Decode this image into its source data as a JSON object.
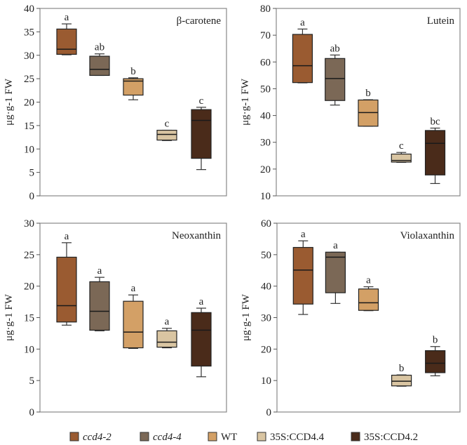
{
  "chart_data": [
    {
      "type": "box",
      "title": "β-carotene",
      "ylabel": "μg·g-1 FW",
      "ylim": [
        0,
        40
      ],
      "yticks": [
        0,
        5,
        10,
        15,
        20,
        25,
        30,
        35,
        40
      ],
      "categories": [
        "ccd4-2",
        "ccd4-4",
        "WT",
        "35S:CCD4.4",
        "35S:CCD4.2"
      ],
      "boxes": [
        {
          "min": 30.1,
          "q1": 30.2,
          "median": 31.3,
          "q3": 35.6,
          "max": 36.7,
          "label": "a"
        },
        {
          "min": 25.7,
          "q1": 25.7,
          "median": 27.0,
          "q3": 29.8,
          "max": 30.3,
          "label": "ab"
        },
        {
          "min": 20.5,
          "q1": 21.5,
          "median": 24.5,
          "q3": 25.0,
          "max": 25.2,
          "label": "b"
        },
        {
          "min": 11.8,
          "q1": 11.9,
          "median": 13.1,
          "q3": 14.0,
          "max": 14.0,
          "label": "c"
        },
        {
          "min": 5.6,
          "q1": 8.0,
          "median": 16.1,
          "q3": 18.4,
          "max": 18.9,
          "label": "c"
        }
      ]
    },
    {
      "type": "box",
      "title": "Lutein",
      "ylabel": "μg·g-1 FW",
      "ylim": [
        10,
        80
      ],
      "yticks": [
        10,
        20,
        30,
        40,
        50,
        60,
        70,
        80
      ],
      "categories": [
        "ccd4-2",
        "ccd4-4",
        "WT",
        "35S:CCD4.4",
        "35S:CCD4.2"
      ],
      "boxes": [
        {
          "min": 52.2,
          "q1": 52.3,
          "median": 58.6,
          "q3": 70.3,
          "max": 72.3,
          "label": "a"
        },
        {
          "min": 43.9,
          "q1": 45.6,
          "median": 53.8,
          "q3": 61.3,
          "max": 62.6,
          "label": "ab"
        },
        {
          "min": 36.0,
          "q1": 36.0,
          "median": 41.1,
          "q3": 45.8,
          "max": 45.9,
          "label": "b"
        },
        {
          "min": 22.5,
          "q1": 22.6,
          "median": 23.2,
          "q3": 25.6,
          "max": 26.2,
          "label": "c"
        },
        {
          "min": 14.6,
          "q1": 17.8,
          "median": 29.6,
          "q3": 34.4,
          "max": 35.3,
          "label": "bc"
        }
      ]
    },
    {
      "type": "box",
      "title": "Neoxanthin",
      "ylabel": "μg·g-1 FW",
      "ylim": [
        0,
        30
      ],
      "yticks": [
        0,
        5,
        10,
        15,
        20,
        25,
        30
      ],
      "categories": [
        "ccd4-2",
        "ccd4-4",
        "WT",
        "35S:CCD4.4",
        "35S:CCD4.2"
      ],
      "boxes": [
        {
          "min": 13.8,
          "q1": 14.3,
          "median": 16.9,
          "q3": 24.6,
          "max": 26.9,
          "label": "a"
        },
        {
          "min": 12.9,
          "q1": 13.0,
          "median": 16.0,
          "q3": 20.7,
          "max": 21.4,
          "label": "a"
        },
        {
          "min": 10.1,
          "q1": 10.2,
          "median": 12.7,
          "q3": 17.6,
          "max": 18.6,
          "label": "a"
        },
        {
          "min": 10.2,
          "q1": 10.3,
          "median": 11.1,
          "q3": 12.9,
          "max": 13.3,
          "label": "a"
        },
        {
          "min": 5.6,
          "q1": 7.3,
          "median": 13.0,
          "q3": 15.8,
          "max": 16.5,
          "label": "a"
        }
      ]
    },
    {
      "type": "box",
      "title": "Violaxanthin",
      "ylabel": "μg·g-1 FW",
      "ylim": [
        0,
        60
      ],
      "yticks": [
        0,
        10,
        20,
        30,
        40,
        50,
        60
      ],
      "categories": [
        "ccd4-2",
        "ccd4-4",
        "WT",
        "35S:CCD4.4",
        "35S:CCD4.2"
      ],
      "boxes": [
        {
          "min": 31.0,
          "q1": 34.3,
          "median": 45.1,
          "q3": 52.3,
          "max": 54.4,
          "label": "a"
        },
        {
          "min": 34.5,
          "q1": 37.9,
          "median": 49.2,
          "q3": 50.8,
          "max": 50.8,
          "label": "a"
        },
        {
          "min": 32.2,
          "q1": 32.3,
          "median": 34.7,
          "q3": 39.1,
          "max": 39.8,
          "label": "a"
        },
        {
          "min": 8.2,
          "q1": 8.3,
          "median": 9.8,
          "q3": 11.7,
          "max": 11.8,
          "label": "b"
        },
        {
          "min": 11.5,
          "q1": 12.5,
          "median": 15.5,
          "q3": 19.5,
          "max": 20.8,
          "label": "b"
        }
      ]
    }
  ],
  "legend": {
    "placement": "bottom",
    "items": [
      {
        "label": "ccd4-2",
        "italic": true,
        "color": "#9a5b31"
      },
      {
        "label": "ccd4-4",
        "italic": true,
        "color": "#7b6856"
      },
      {
        "label": "WT",
        "italic": false,
        "color": "#d3a066"
      },
      {
        "label": "35S:CCD4.4",
        "italic": false,
        "color": "#d9c5a2"
      },
      {
        "label": "35S:CCD4.2",
        "italic": false,
        "color": "#4a2b1a"
      }
    ]
  }
}
